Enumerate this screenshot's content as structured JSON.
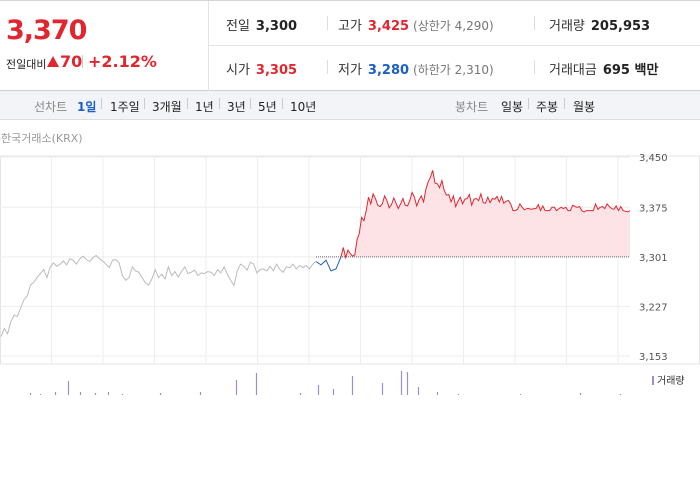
{
  "quote": {
    "price": "3,370",
    "change_label": "전일대비",
    "change_value": "70",
    "change_pct": "+2.12%"
  },
  "stats": {
    "prev_close_label": "전일",
    "prev_close": "3,300",
    "high_label": "고가",
    "high": "3,425",
    "upper_limit": "(상한가 4,290)",
    "volume_label": "거래량",
    "volume": "205,953",
    "open_label": "시가",
    "open": "3,305",
    "low_label": "저가",
    "low": "3,280",
    "lower_limit": "(하한가 2,310)",
    "amount_label": "거래대금",
    "amount": "695 백만"
  },
  "toolbar": {
    "line_label": "선차트",
    "periods": [
      "1일",
      "1주일",
      "3개월",
      "1년",
      "3년",
      "5년",
      "10년"
    ],
    "selected_period": "1일",
    "candle_label": "봉차트",
    "candles": [
      "일봉",
      "주봉",
      "월봉"
    ]
  },
  "source_label": "한국거래소(KRX)",
  "colors": {
    "up": "#e0262f",
    "down": "#1a5fc4",
    "prev_segment": "#bbbbbb",
    "volume": "#9b8fd4",
    "fill": "#fde3e6"
  },
  "chart_data": {
    "type": "line",
    "y_ticks": [
      "3,450",
      "3,375",
      "3,301",
      "3,227",
      "3,153"
    ],
    "ylim": [
      3153,
      3450
    ],
    "baseline": 3301,
    "series": [
      {
        "segment": "previous-day",
        "values": [
          3182,
          3194,
          3186,
          3204,
          3214,
          3212,
          3225,
          3237,
          3243,
          3259,
          3263,
          3270,
          3276,
          3282,
          3270,
          3286,
          3292,
          3287,
          3290,
          3295,
          3289,
          3298,
          3296,
          3290,
          3298,
          3302,
          3297,
          3294,
          3300,
          3303,
          3298,
          3295,
          3290,
          3285,
          3296,
          3297,
          3292,
          3273,
          3266,
          3270,
          3286,
          3280,
          3278,
          3270,
          3262,
          3259,
          3268,
          3282,
          3270,
          3275,
          3268,
          3286,
          3273,
          3279,
          3271,
          3279,
          3286,
          3276,
          3278,
          3281,
          3273,
          3277,
          3276,
          3279,
          3278,
          3273,
          3282,
          3277,
          3286,
          3275,
          3266,
          3258,
          3280,
          3290,
          3287,
          3281,
          3293,
          3290,
          3277,
          3282,
          3283,
          3280,
          3287,
          3280,
          3290,
          3282,
          3278,
          3286,
          3285,
          3290,
          3283,
          3288,
          3285,
          3288,
          3283,
          3290,
          3294
        ]
      },
      {
        "segment": "open",
        "values": [
          3294,
          3289,
          3296,
          3280,
          3283,
          3301
        ]
      },
      {
        "segment": "intraday",
        "values": [
          3301,
          3315,
          3300,
          3311,
          3306,
          3302,
          3304,
          3327,
          3336,
          3360,
          3355,
          3370,
          3390,
          3380,
          3395,
          3388,
          3378,
          3376,
          3380,
          3392,
          3385,
          3374,
          3379,
          3389,
          3381,
          3373,
          3380,
          3388,
          3378,
          3377,
          3385,
          3397,
          3390,
          3377,
          3386,
          3392,
          3383,
          3402,
          3413,
          3420,
          3430,
          3411,
          3410,
          3404,
          3415,
          3400,
          3393,
          3394,
          3383,
          3392,
          3376,
          3384,
          3390,
          3380,
          3387,
          3388,
          3394,
          3378,
          3387,
          3388,
          3385,
          3395,
          3382,
          3381,
          3390,
          3382,
          3388,
          3387,
          3391,
          3383,
          3391,
          3381,
          3384,
          3385,
          3380,
          3370,
          3370,
          3372,
          3380,
          3375,
          3371,
          3373,
          3373,
          3372,
          3373,
          3373,
          3379,
          3370,
          3377,
          3370,
          3370,
          3370,
          3375,
          3375,
          3370,
          3373,
          3375,
          3373,
          3375,
          3370,
          3370,
          3378,
          3376,
          3375,
          3376,
          3370,
          3368,
          3370,
          3370,
          3370,
          3370,
          3380,
          3372,
          3375,
          3376,
          3373,
          3380,
          3376,
          3373,
          3372,
          3377,
          3370,
          3376,
          3370,
          3369,
          3368,
          3370
        ]
      }
    ],
    "volume": [
      {
        "i": 30,
        "v": 2
      },
      {
        "i": 40,
        "v": 1
      },
      {
        "i": 55,
        "v": 3
      },
      {
        "i": 68,
        "v": 14
      },
      {
        "i": 80,
        "v": 3
      },
      {
        "i": 95,
        "v": 2
      },
      {
        "i": 108,
        "v": 3
      },
      {
        "i": 122,
        "v": 1
      },
      {
        "i": 160,
        "v": 2
      },
      {
        "i": 200,
        "v": 3
      },
      {
        "i": 236,
        "v": 15
      },
      {
        "i": 256,
        "v": 22
      },
      {
        "i": 300,
        "v": 2
      },
      {
        "i": 318,
        "v": 10
      },
      {
        "i": 333,
        "v": 6
      },
      {
        "i": 352,
        "v": 19
      },
      {
        "i": 382,
        "v": 12
      },
      {
        "i": 401,
        "v": 24
      },
      {
        "i": 407,
        "v": 23
      },
      {
        "i": 418,
        "v": 8
      },
      {
        "i": 437,
        "v": 3
      },
      {
        "i": 458,
        "v": 1
      },
      {
        "i": 520,
        "v": 1
      },
      {
        "i": 580,
        "v": 2
      },
      {
        "i": 620,
        "v": 1
      }
    ],
    "volume_label": "거래량"
  }
}
